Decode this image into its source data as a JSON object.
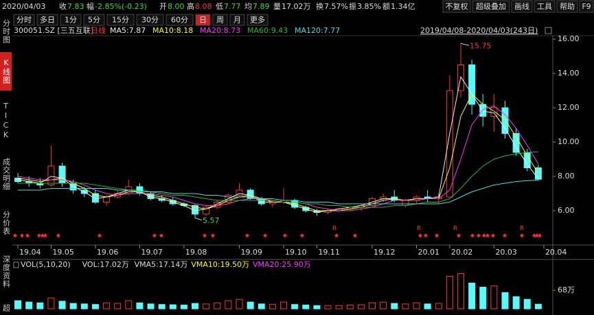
{
  "header": {
    "date": "2020/04/03",
    "fields": [
      {
        "label": "收",
        "value": "7.83",
        "color": "#33dd33"
      },
      {
        "label": "幅",
        "value": "-2.85%(-0.23)",
        "color": "#33dd33"
      },
      {
        "label": "开",
        "value": "8.00",
        "color": "#33dd33"
      },
      {
        "label": "高",
        "value": "8.08",
        "color": "#ff3232"
      },
      {
        "label": "低",
        "value": "7.77",
        "color": "#33dd33"
      },
      {
        "label": "均",
        "value": "7.89",
        "color": "#33dd33"
      },
      {
        "label": "量",
        "value": "17.02万",
        "color": "#dddddd"
      },
      {
        "label": "换",
        "value": "7.57%",
        "color": "#dddddd"
      },
      {
        "label": "振",
        "value": "3.85%",
        "color": "#dddddd"
      },
      {
        "label": "额",
        "value": "1.34亿",
        "color": "#dddddd"
      }
    ]
  },
  "buttons": [
    "不复权",
    "超级叠加",
    "画线",
    "工具",
    "帮助",
    "F9"
  ],
  "toolbar": [
    "分时",
    "多日",
    "1分",
    "5分",
    "15分",
    "30分",
    "60分",
    "日",
    "周",
    "月",
    "更多"
  ],
  "sidebar": [
    "分时图",
    "K线图",
    "TICK",
    "成交明细",
    "分价表",
    "深度资料",
    "超"
  ],
  "chart_data": {
    "type": "candlestick",
    "symbol": "300051.SZ [三五互联]",
    "period": "日线",
    "range": "2019/04/08-2020/04/03(243日)",
    "open": [
      7.9,
      7.7,
      7.6,
      7.5,
      8.6,
      7.6,
      7.2,
      7.0,
      6.5,
      6.8,
      7.0,
      7.4,
      7.0,
      6.7,
      6.6,
      6.4,
      6.3,
      5.8,
      6.2,
      6.5,
      6.9,
      7.2,
      6.7,
      6.4,
      6.5,
      6.6,
      6.2,
      6.0,
      5.9,
      6.0,
      6.1,
      6.2,
      6.3,
      6.7,
      6.8,
      6.3,
      6.6,
      6.8,
      6.7,
      6.8,
      13.0,
      14.5,
      12.2,
      11.5,
      12.0,
      10.5,
      9.4,
      8.5
    ],
    "high": [
      8.2,
      8.0,
      7.9,
      9.8,
      8.8,
      7.8,
      7.4,
      7.2,
      6.9,
      7.2,
      7.8,
      7.6,
      7.1,
      6.9,
      6.8,
      6.5,
      6.4,
      6.3,
      6.6,
      7.0,
      7.6,
      7.3,
      6.8,
      6.6,
      7.3,
      6.7,
      6.3,
      6.1,
      6.1,
      6.2,
      6.3,
      6.4,
      6.8,
      7.0,
      7.2,
      6.7,
      6.9,
      7.2,
      7.0,
      13.9,
      15.75,
      14.8,
      12.8,
      12.8,
      12.4,
      10.8,
      9.6,
      8.7
    ],
    "low": [
      7.6,
      7.4,
      7.3,
      7.4,
      7.4,
      7.0,
      6.8,
      6.4,
      6.3,
      6.7,
      6.9,
      6.9,
      6.6,
      6.5,
      6.3,
      6.2,
      5.57,
      5.7,
      6.1,
      6.4,
      6.8,
      6.6,
      6.3,
      6.2,
      6.4,
      6.1,
      5.9,
      5.7,
      5.8,
      5.9,
      6.0,
      6.0,
      6.2,
      6.5,
      6.5,
      6.2,
      6.4,
      6.5,
      6.4,
      6.8,
      12.6,
      11.6,
      10.9,
      10.6,
      10.2,
      9.2,
      8.3,
      7.77
    ],
    "close": [
      7.7,
      7.6,
      7.5,
      8.6,
      7.6,
      7.2,
      7.0,
      6.5,
      6.8,
      7.0,
      7.4,
      7.0,
      6.7,
      6.6,
      6.4,
      6.3,
      5.8,
      6.2,
      6.5,
      6.9,
      7.2,
      6.7,
      6.4,
      6.5,
      6.6,
      6.2,
      6.0,
      5.9,
      6.0,
      6.1,
      6.2,
      6.3,
      6.7,
      6.8,
      6.6,
      6.6,
      6.8,
      6.7,
      6.8,
      13.0,
      14.5,
      12.2,
      11.5,
      12.0,
      10.5,
      9.4,
      8.5,
      7.83
    ],
    "ma_series": [
      {
        "name": "MA5:7.87",
        "color": "#eeeeee",
        "values": [
          7.8,
          7.7,
          7.6,
          8.0,
          7.9,
          7.4,
          7.1,
          6.7,
          6.8,
          7.0,
          7.2,
          7.1,
          6.8,
          6.7,
          6.5,
          6.3,
          6.0,
          6.1,
          6.4,
          6.7,
          7.0,
          6.9,
          6.5,
          6.5,
          6.5,
          6.3,
          6.1,
          5.9,
          6.0,
          6.1,
          6.2,
          6.3,
          6.5,
          6.7,
          6.7,
          6.6,
          6.7,
          6.7,
          6.8,
          10.5,
          13.8,
          12.8,
          11.8,
          11.7,
          10.8,
          9.7,
          8.7,
          7.87
        ]
      },
      {
        "name": "MA10:8.18",
        "color": "#ffff00",
        "values": [
          7.9,
          7.8,
          7.7,
          7.8,
          7.9,
          7.6,
          7.3,
          6.9,
          6.8,
          6.9,
          7.1,
          7.1,
          6.9,
          6.8,
          6.6,
          6.4,
          6.2,
          6.1,
          6.3,
          6.6,
          6.8,
          6.9,
          6.7,
          6.5,
          6.5,
          6.4,
          6.2,
          6.0,
          6.0,
          6.0,
          6.1,
          6.2,
          6.4,
          6.6,
          6.7,
          6.6,
          6.7,
          6.7,
          6.7,
          8.5,
          11.5,
          12.8,
          12.2,
          11.8,
          11.3,
          10.3,
          9.2,
          8.18
        ]
      },
      {
        "name": "MA20:8.73",
        "color": "#ff33ff",
        "values": [
          8.0,
          7.9,
          7.8,
          7.8,
          7.8,
          7.7,
          7.5,
          7.2,
          7.0,
          6.9,
          7.0,
          7.0,
          7.0,
          6.9,
          6.8,
          6.6,
          6.4,
          6.3,
          6.3,
          6.4,
          6.6,
          6.7,
          6.7,
          6.6,
          6.5,
          6.5,
          6.4,
          6.2,
          6.1,
          6.0,
          6.0,
          6.1,
          6.2,
          6.4,
          6.6,
          6.6,
          6.6,
          6.7,
          6.7,
          7.2,
          9.0,
          11.0,
          11.9,
          12.1,
          11.6,
          10.8,
          9.8,
          8.73
        ]
      },
      {
        "name": "MA60:9.43",
        "color": "#22bb22",
        "values": [
          7.6,
          7.6,
          7.6,
          7.6,
          7.6,
          7.6,
          7.6,
          7.5,
          7.4,
          7.3,
          7.2,
          7.1,
          7.1,
          7.0,
          6.9,
          6.9,
          6.8,
          6.7,
          6.6,
          6.6,
          6.6,
          6.6,
          6.6,
          6.6,
          6.5,
          6.5,
          6.4,
          6.4,
          6.3,
          6.3,
          6.2,
          6.2,
          6.2,
          6.2,
          6.3,
          6.3,
          6.4,
          6.5,
          6.5,
          6.7,
          7.3,
          8.0,
          8.6,
          9.0,
          9.2,
          9.3,
          9.4,
          9.43
        ]
      },
      {
        "name": "MA120:7.77",
        "color": "#44dddd",
        "values": [
          7.2,
          7.2,
          7.2,
          7.3,
          7.3,
          7.3,
          7.3,
          7.3,
          7.3,
          7.2,
          7.2,
          7.2,
          7.1,
          7.1,
          7.0,
          7.0,
          7.0,
          6.9,
          6.9,
          6.8,
          6.8,
          6.8,
          6.7,
          6.7,
          6.6,
          6.6,
          6.5,
          6.5,
          6.5,
          6.4,
          6.4,
          6.4,
          6.4,
          6.4,
          6.4,
          6.4,
          6.4,
          6.4,
          6.4,
          6.5,
          6.8,
          7.1,
          7.3,
          7.5,
          7.6,
          7.7,
          7.75,
          7.77
        ]
      }
    ],
    "up_color": "#ff3232",
    "down_color": "#54fcfc",
    "ylim": [
      5.08,
      16.2
    ],
    "yticks": [
      {
        "value": 6,
        "label": "6.00"
      },
      {
        "value": 8,
        "label": "8.00"
      },
      {
        "value": 10,
        "label": "10.00"
      },
      {
        "value": 12,
        "label": "12.00"
      },
      {
        "value": 14,
        "label": "14.00"
      },
      {
        "value": 16,
        "label": "16.00"
      }
    ],
    "xlim": [
      -0.5,
      48
    ],
    "xticks": [
      {
        "value": 0,
        "label": "19.04"
      },
      {
        "value": 3,
        "label": "19.05"
      },
      {
        "value": 7,
        "label": "19.06"
      },
      {
        "value": 11,
        "label": "19.07"
      },
      {
        "value": 15,
        "label": "19.08"
      },
      {
        "value": 20,
        "label": "19.09"
      },
      {
        "value": 24,
        "label": "19.10"
      },
      {
        "value": 27,
        "label": "19.11"
      },
      {
        "value": 32,
        "label": "19.12"
      },
      {
        "value": 36,
        "label": "20.01"
      },
      {
        "value": 39,
        "label": "20.02"
      },
      {
        "value": 43,
        "label": "20.03"
      },
      {
        "value": 47.5,
        "label": "20.04"
      }
    ],
    "high_label": 15.75,
    "low_label": 5.57,
    "signal": "R",
    "volume": {
      "legend": [
        {
          "label": "VOL(5,10,20)",
          "color": "#dddddd"
        },
        {
          "label": "VOL:17.02万",
          "color": "#dddddd"
        },
        {
          "label": "VMA5:17.14万",
          "color": "#dddddd"
        },
        {
          "label": "VMA10:19.50万",
          "color": "#ffff00"
        },
        {
          "label": "VMA20:25.90万",
          "color": "#ff33ff"
        }
      ],
      "values": [
        30,
        25,
        22,
        40,
        28,
        20,
        18,
        16,
        22,
        20,
        30,
        22,
        18,
        16,
        15,
        14,
        20,
        18,
        22,
        30,
        35,
        25,
        18,
        16,
        25,
        16,
        14,
        12,
        12,
        12,
        14,
        15,
        22,
        25,
        20,
        18,
        22,
        18,
        20,
        120,
        130,
        95,
        80,
        85,
        60,
        45,
        35,
        17.02
      ],
      "ylim": [
        0,
        139
      ],
      "yticks": [
        {
          "value": 68,
          "label": "68万"
        }
      ]
    }
  }
}
